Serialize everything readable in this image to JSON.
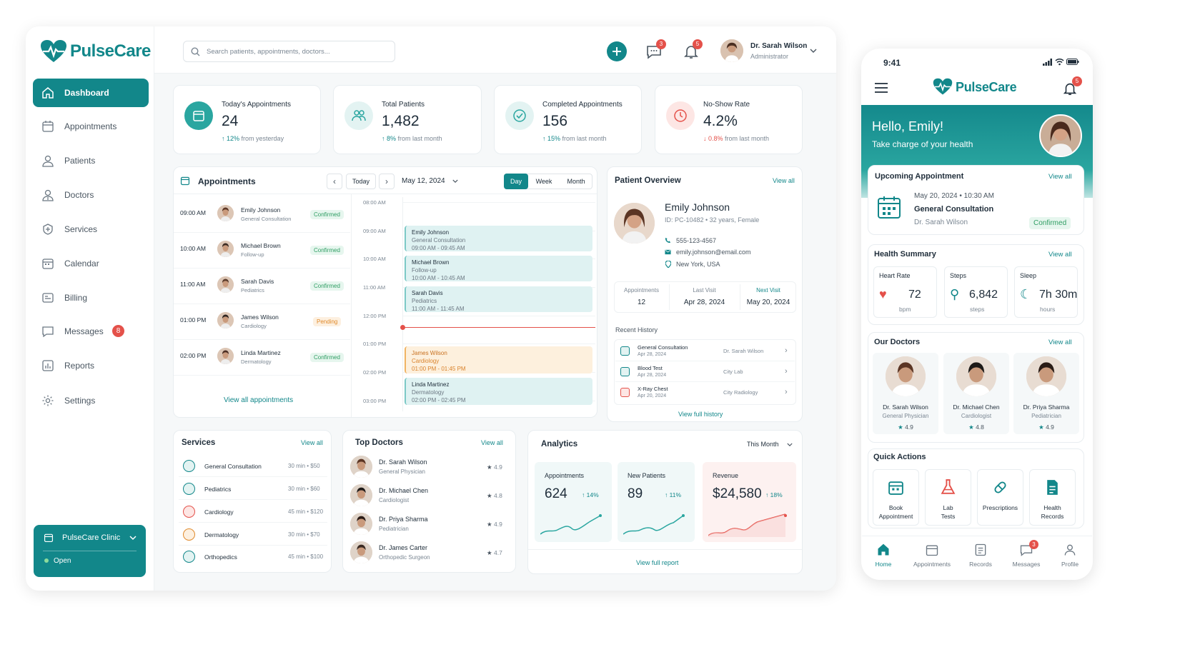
{
  "brand": {
    "name": "PulseCare",
    "colors": {
      "primary": "#12878a",
      "dark": "#0f6f72",
      "accent": "#2aa6a0",
      "danger": "#e4514a"
    }
  },
  "search": {
    "placeholder": "Search patients, appointments, doctors..."
  },
  "header": {
    "chat_count": "3",
    "notif_count": "5",
    "user_name": "Dr. Sarah Wilson",
    "user_role": "Administrator"
  },
  "sidebar": {
    "items": [
      {
        "label": "Dashboard",
        "icon": "home-icon"
      },
      {
        "label": "Appointments",
        "icon": "calendar-icon"
      },
      {
        "label": "Patients",
        "icon": "user-icon"
      },
      {
        "label": "Doctors",
        "icon": "doctor-icon"
      },
      {
        "label": "Services",
        "icon": "services-icon"
      },
      {
        "label": "Calendar",
        "icon": "calendar-icon"
      },
      {
        "label": "Billing",
        "icon": "billing-icon"
      },
      {
        "label": "Messages",
        "icon": "message-icon",
        "badge": "8"
      },
      {
        "label": "Reports",
        "icon": "reports-icon"
      },
      {
        "label": "Settings",
        "icon": "gear-icon"
      }
    ],
    "clinic": {
      "name": "PulseCare Clinic",
      "status": "Open"
    }
  },
  "stats": [
    {
      "label": "Today's Appointments",
      "value": "24",
      "delta": "12%",
      "note": "from yesterday",
      "dir": "up"
    },
    {
      "label": "Total Patients",
      "value": "1,482",
      "delta": "8%",
      "note": "from last month",
      "dir": "up"
    },
    {
      "label": "Completed Appointments",
      "value": "156",
      "delta": "15%",
      "note": "from last month",
      "dir": "up"
    },
    {
      "label": "No-Show Rate",
      "value": "4.2%",
      "delta": "0.8%",
      "note": "from last month",
      "dir": "down"
    }
  ],
  "appointments": {
    "title": "Appointments",
    "today": "Today",
    "date": "May 12, 2024",
    "views": [
      "Day",
      "Week",
      "Month"
    ],
    "view_all": "View all appointments",
    "list": [
      {
        "time": "09:00 AM",
        "name": "Emily Johnson",
        "type": "General Consultation",
        "status": "Confirmed"
      },
      {
        "time": "10:00 AM",
        "name": "Michael Brown",
        "type": "Follow-up",
        "status": "Confirmed"
      },
      {
        "time": "11:00 AM",
        "name": "Sarah Davis",
        "type": "Pediatrics",
        "status": "Confirmed"
      },
      {
        "time": "01:00 PM",
        "name": "James Wilson",
        "type": "Cardiology",
        "status": "Pending"
      },
      {
        "time": "02:00 PM",
        "name": "Linda Martinez",
        "type": "Dermatology",
        "status": "Confirmed"
      }
    ],
    "timeline": [
      "08:00 AM",
      "09:00 AM",
      "10:00 AM",
      "11:00 AM",
      "12:00 PM",
      "01:00 PM",
      "02:00 PM",
      "03:00 PM"
    ],
    "events": [
      {
        "name": "Emily Johnson",
        "type": "General Consultation",
        "time": "09:00 AM - 09:45 AM"
      },
      {
        "name": "Michael Brown",
        "type": "Follow-up",
        "time": "10:00 AM - 10:45 AM"
      },
      {
        "name": "Sarah Davis",
        "type": "Pediatrics",
        "time": "11:00 AM - 11:45 AM"
      },
      {
        "name": "James Wilson",
        "type": "Cardiology",
        "time": "01:00 PM - 01:45 PM"
      },
      {
        "name": "Linda Martinez",
        "type": "Dermatology",
        "time": "02:00 PM - 02:45 PM"
      }
    ]
  },
  "patient": {
    "title": "Patient Overview",
    "view_all": "View all",
    "name": "Emily Johnson",
    "id": "ID: PC-10482 • 32 years, Female",
    "phone": "555-123-4567",
    "email": "emily.johnson@email.com",
    "location": "New York, USA",
    "stats": [
      {
        "label": "Appointments",
        "value": "12"
      },
      {
        "label": "Last Visit",
        "value": "Apr 28, 2024"
      },
      {
        "label": "Next Visit",
        "value": "May 20, 2024"
      }
    ],
    "history_title": "Recent History",
    "history_link": "View full history",
    "history": [
      {
        "title": "General Consultation",
        "date": "Apr 28, 2024",
        "by": "Dr. Sarah Wilson"
      },
      {
        "title": "Blood Test",
        "date": "Apr 28, 2024",
        "by": "City Lab"
      },
      {
        "title": "X-Ray Chest",
        "date": "Apr 20, 2024",
        "by": "City Radiology"
      }
    ]
  },
  "services": {
    "title": "Services",
    "view_all": "View all",
    "items": [
      {
        "name": "General Consultation",
        "meta": "30 min • $50"
      },
      {
        "name": "Pediatrics",
        "meta": "30 min • $60"
      },
      {
        "name": "Cardiology",
        "meta": "45 min • $120"
      },
      {
        "name": "Dermatology",
        "meta": "30 min • $70"
      },
      {
        "name": "Orthopedics",
        "meta": "45 min • $100"
      }
    ]
  },
  "top_doctors": {
    "title": "Top Doctors",
    "view_all": "View all",
    "items": [
      {
        "name": "Dr. Sarah Wilson",
        "role": "General Physician",
        "rating": "4.9"
      },
      {
        "name": "Dr. Michael Chen",
        "role": "Cardiologist",
        "rating": "4.8"
      },
      {
        "name": "Dr. Priya Sharma",
        "role": "Pediatrician",
        "rating": "4.9"
      },
      {
        "name": "Dr. James Carter",
        "role": "Orthopedic Surgeon",
        "rating": "4.7"
      }
    ]
  },
  "analytics": {
    "title": "Analytics",
    "period": "This Month",
    "link": "View full report",
    "cards": [
      {
        "label": "Appointments",
        "value": "624",
        "delta": "14%"
      },
      {
        "label": "New Patients",
        "value": "89",
        "delta": "11%"
      },
      {
        "label": "Revenue",
        "value": "$24,580",
        "delta": "18%"
      }
    ]
  },
  "mobile": {
    "time": "9:41",
    "notif_count": "5",
    "greeting": "Hello, Emily!",
    "subtitle": "Take charge of your health",
    "upcoming": {
      "title": "Upcoming Appointment",
      "view_all": "View all",
      "datetime": "May 20, 2024 • 10:30 AM",
      "type": "General Consultation",
      "doctor": "Dr. Sarah Wilson",
      "status": "Confirmed"
    },
    "health": {
      "title": "Health Summary",
      "view_all": "View all",
      "items": [
        {
          "label": "Heart Rate",
          "value": "72",
          "unit": "bpm"
        },
        {
          "label": "Steps",
          "value": "6,842",
          "unit": "steps"
        },
        {
          "label": "Sleep",
          "value": "7h 30m",
          "unit": "hours"
        }
      ]
    },
    "doctors": {
      "title": "Our Doctors",
      "view_all": "View all",
      "items": [
        {
          "name": "Dr. Sarah Wilson",
          "role": "General Physician",
          "rating": "4.9"
        },
        {
          "name": "Dr. Michael Chen",
          "role": "Cardiologist",
          "rating": "4.8"
        },
        {
          "name": "Dr. Priya Sharma",
          "role": "Pediatrician",
          "rating": "4.9"
        }
      ]
    },
    "quick": {
      "title": "Quick Actions",
      "items": [
        {
          "l1": "Book",
          "l2": "Appointment"
        },
        {
          "l1": "Lab",
          "l2": "Tests"
        },
        {
          "l1": "Prescriptions",
          "l2": ""
        },
        {
          "l1": "Health",
          "l2": "Records"
        }
      ]
    },
    "tabs": [
      {
        "label": "Home"
      },
      {
        "label": "Appointments"
      },
      {
        "label": "Records"
      },
      {
        "label": "Messages",
        "badge": "3"
      },
      {
        "label": "Profile"
      }
    ]
  }
}
